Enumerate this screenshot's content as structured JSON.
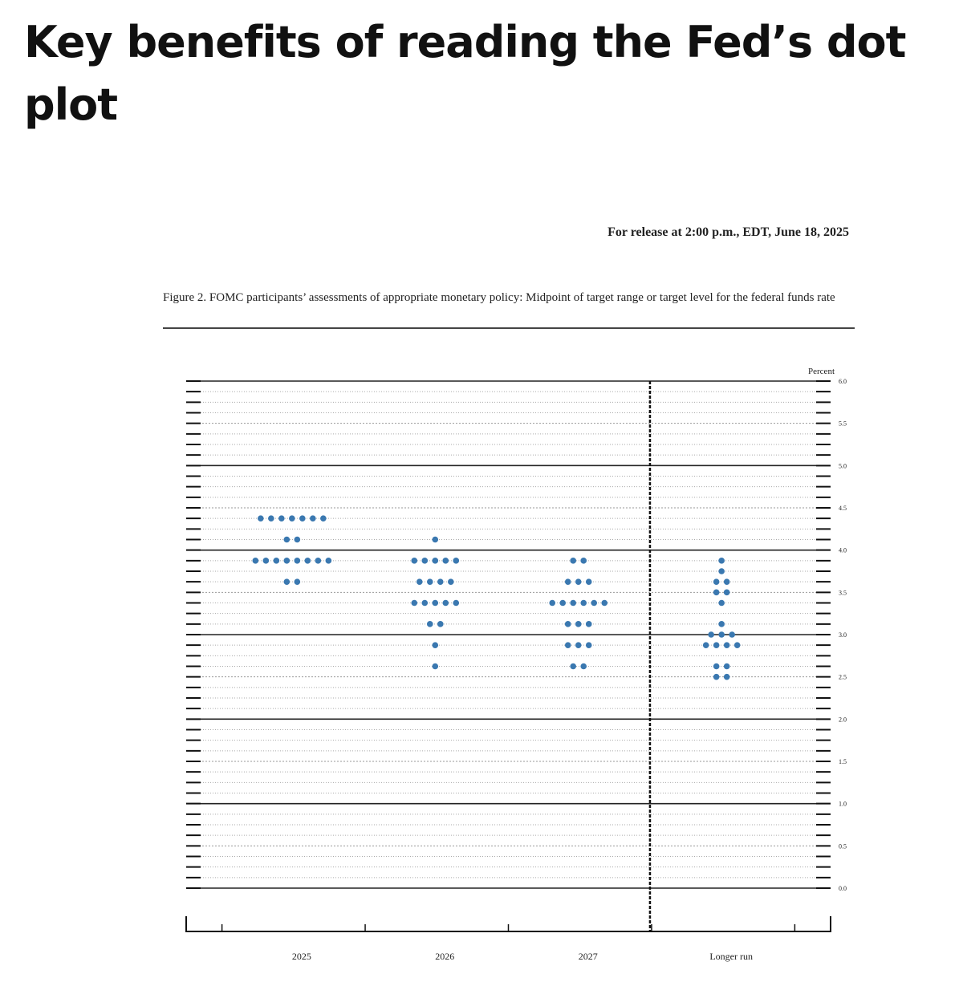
{
  "heading": "Key benefits of reading the Fed’s dot plot",
  "release_note": "For release at 2:00 p.m., EDT, June 18, 2025",
  "chart_data": {
    "type": "dot",
    "title": "Figure 2. FOMC participants’ assessments of appropriate monetary policy: Midpoint of target range or target level for the federal funds rate",
    "ylabel": "Percent",
    "categories": [
      "2025",
      "2026",
      "2027",
      "Longer run"
    ],
    "color": "#3a78b0",
    "ylim": [
      0,
      6
    ],
    "yticks": [
      {
        "value": 0,
        "label": "0.0"
      },
      0.5,
      {
        "value": 1,
        "label": "1.0"
      },
      1.5,
      {
        "value": 2,
        "label": "2.0"
      },
      2.5,
      {
        "value": 3,
        "label": "3.0"
      },
      3.5,
      {
        "value": 4,
        "label": "4.0"
      },
      4.5,
      {
        "value": 5,
        "label": "5.0"
      },
      5.5,
      {
        "value": 6,
        "label": "6.0"
      }
    ],
    "values": [
      [
        {
          "y": 4.375,
          "count": 7
        },
        {
          "y": 4.125,
          "count": 2
        },
        {
          "y": 3.875,
          "count": 8
        },
        {
          "y": 3.625,
          "count": 2
        }
      ],
      [
        {
          "y": 4.125,
          "count": 1
        },
        {
          "y": 3.875,
          "count": 5
        },
        {
          "y": 3.625,
          "count": 4
        },
        {
          "y": 3.375,
          "count": 5
        },
        {
          "y": 3.125,
          "count": 2
        },
        {
          "y": 2.875,
          "count": 1
        },
        {
          "y": 2.625,
          "count": 1
        }
      ],
      [
        {
          "y": 3.875,
          "count": 2
        },
        {
          "y": 3.625,
          "count": 3
        },
        {
          "y": 3.375,
          "count": 6
        },
        {
          "y": 3.125,
          "count": 3
        },
        {
          "y": 2.875,
          "count": 3
        },
        {
          "y": 2.625,
          "count": 2
        }
      ],
      [
        {
          "y": 3.875,
          "count": 1
        },
        {
          "y": 3.75,
          "count": 1
        },
        {
          "y": 3.625,
          "count": 2
        },
        {
          "y": 3.5,
          "count": 2
        },
        {
          "y": 3.375,
          "count": 1
        },
        {
          "y": 3.125,
          "count": 1
        },
        {
          "y": 3.0,
          "count": 3
        },
        {
          "y": 2.875,
          "count": 4
        },
        {
          "y": 2.625,
          "count": 2
        },
        {
          "y": 2.5,
          "count": 2
        }
      ]
    ]
  }
}
